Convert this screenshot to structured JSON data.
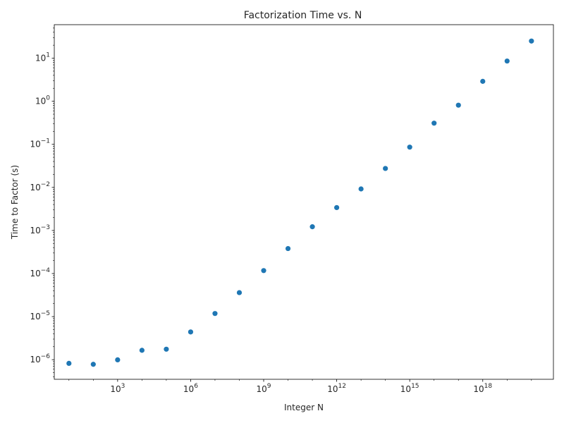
{
  "chart_data": {
    "type": "scatter",
    "title": "Factorization Time vs. N",
    "xlabel": "Integer N",
    "ylabel": "Time to Factor (s)",
    "xscale": "log",
    "yscale": "log",
    "xlim": [
      2.5,
      8e+20
    ],
    "ylim": [
      3.5e-07,
      60.0
    ],
    "grid": false,
    "marker_color": "#1f77b4",
    "x_ticks": [
      {
        "value": 1000.0,
        "base": "10",
        "exp": "3"
      },
      {
        "value": 1000000.0,
        "base": "10",
        "exp": "6"
      },
      {
        "value": 1000000000.0,
        "base": "10",
        "exp": "9"
      },
      {
        "value": 1000000000000.0,
        "base": "10",
        "exp": "12"
      },
      {
        "value": 1000000000000000.0,
        "base": "10",
        "exp": "15"
      },
      {
        "value": 1e+18,
        "base": "10",
        "exp": "18"
      }
    ],
    "y_ticks": [
      {
        "value": 1e-06,
        "base": "10",
        "exp": "−6"
      },
      {
        "value": 1e-05,
        "base": "10",
        "exp": "−5"
      },
      {
        "value": 0.0001,
        "base": "10",
        "exp": "−4"
      },
      {
        "value": 0.001,
        "base": "10",
        "exp": "−3"
      },
      {
        "value": 0.01,
        "base": "10",
        "exp": "−2"
      },
      {
        "value": 0.1,
        "base": "10",
        "exp": "−1"
      },
      {
        "value": 1,
        "base": "10",
        "exp": "0"
      },
      {
        "value": 10,
        "base": "10",
        "exp": "1"
      }
    ],
    "points": [
      {
        "x": 10.0,
        "y": 8.2e-07
      },
      {
        "x": 100.0,
        "y": 7.8e-07
      },
      {
        "x": 1000.0,
        "y": 9.9e-07
      },
      {
        "x": 10000.0,
        "y": 1.65e-06
      },
      {
        "x": 100000.0,
        "y": 1.75e-06
      },
      {
        "x": 1000000.0,
        "y": 4.4e-06
      },
      {
        "x": 10000000.0,
        "y": 1.18e-05
      },
      {
        "x": 100000000.0,
        "y": 3.6e-05
      },
      {
        "x": 1000000000.0,
        "y": 0.000117
      },
      {
        "x": 10000000000.0,
        "y": 0.00038
      },
      {
        "x": 100000000000.0,
        "y": 0.00122
      },
      {
        "x": 1000000000000.0,
        "y": 0.0034
      },
      {
        "x": 10000000000000.0,
        "y": 0.0092
      },
      {
        "x": 100000000000000.0,
        "y": 0.0275
      },
      {
        "x": 1000000000000000.0,
        "y": 0.086
      },
      {
        "x": 1e+16,
        "y": 0.31
      },
      {
        "x": 1e+17,
        "y": 0.81
      },
      {
        "x": 1e+18,
        "y": 2.9
      },
      {
        "x": 1e+19,
        "y": 8.6
      },
      {
        "x": 1e+20,
        "y": 25
      }
    ]
  }
}
